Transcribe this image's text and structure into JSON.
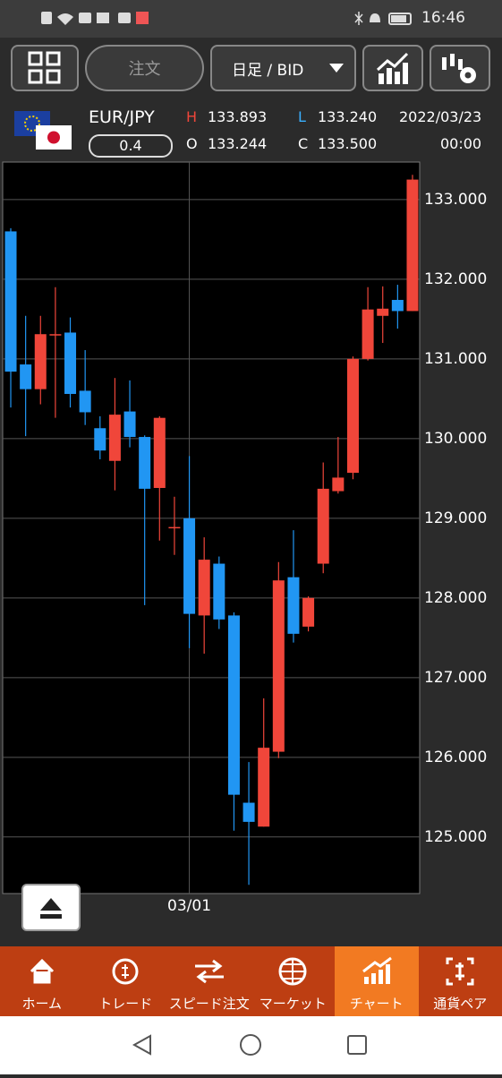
{
  "status_bar": {
    "time": "16:46"
  },
  "toolbar": {
    "order_button": "注文",
    "timeframe": "日足 / BID"
  },
  "quote": {
    "pair": "EUR/JPY",
    "spread": "0.4",
    "high_label": "H",
    "high": "133.893",
    "low_label": "L",
    "low": "133.240",
    "open_label": "O",
    "open": "133.244",
    "close_label": "C",
    "close": "133.500",
    "date": "2022/03/23",
    "time": "00:00"
  },
  "chart_data": {
    "type": "candlestick",
    "categories": [
      null,
      null,
      null,
      null,
      null,
      null,
      null,
      null,
      null,
      null,
      null,
      null,
      "03/01",
      null,
      null,
      null,
      null,
      null,
      null,
      null,
      null,
      null,
      null,
      null,
      null,
      null,
      null,
      null
    ],
    "series": [
      {
        "open": [
          132.6,
          130.93,
          130.62,
          131.31,
          131.33,
          130.6,
          130.13,
          129.72,
          130.34,
          130.02,
          129.38,
          128.89,
          129.0,
          127.78,
          128.43,
          127.78,
          125.43,
          125.13,
          126.07,
          128.26,
          127.64,
          128.43,
          129.34,
          129.57,
          131.0,
          131.54,
          131.74,
          131.6
        ],
        "high": [
          132.64,
          131.54,
          131.54,
          131.9,
          131.52,
          131.11,
          130.28,
          130.76,
          130.73,
          130.04,
          130.28,
          129.27,
          129.78,
          128.76,
          128.52,
          127.82,
          125.94,
          126.74,
          128.45,
          128.85,
          128.02,
          129.7,
          130.02,
          131.03,
          131.9,
          131.91,
          131.93,
          133.31
        ],
        "low": [
          130.39,
          130.03,
          130.43,
          130.26,
          130.39,
          130.17,
          129.74,
          129.35,
          129.89,
          127.91,
          128.72,
          128.54,
          127.37,
          127.3,
          127.61,
          125.08,
          124.4,
          125.13,
          125.99,
          127.44,
          127.58,
          128.31,
          129.31,
          129.49,
          130.98,
          131.2,
          131.38,
          131.6
        ],
        "close": [
          130.84,
          130.62,
          131.31,
          131.31,
          130.56,
          130.33,
          129.85,
          130.3,
          130.02,
          129.37,
          130.26,
          128.89,
          127.8,
          128.48,
          127.73,
          125.53,
          125.19,
          126.12,
          128.22,
          127.55,
          128.0,
          129.37,
          129.51,
          131.0,
          131.62,
          131.63,
          131.6,
          133.25
        ]
      }
    ],
    "up_color": "#f0463a",
    "down_color": "#2196f3",
    "ylim": [
      124.29,
      133.47
    ],
    "yticks": [
      {
        "value": 125,
        "label": "125.000"
      },
      {
        "value": 126,
        "label": "126.000"
      },
      {
        "value": 127,
        "label": "127.000"
      },
      {
        "value": 128,
        "label": "128.000"
      },
      {
        "value": 129,
        "label": "129.000"
      },
      {
        "value": 130,
        "label": "130.000"
      },
      {
        "value": 131,
        "label": "131.000"
      },
      {
        "value": 132,
        "label": "132.000"
      },
      {
        "value": 133,
        "label": "133.000"
      }
    ],
    "grid": true
  },
  "nav": {
    "items": [
      "ホーム",
      "トレード",
      "スピード注文",
      "マーケット",
      "チャート",
      "通貨ペア"
    ]
  }
}
